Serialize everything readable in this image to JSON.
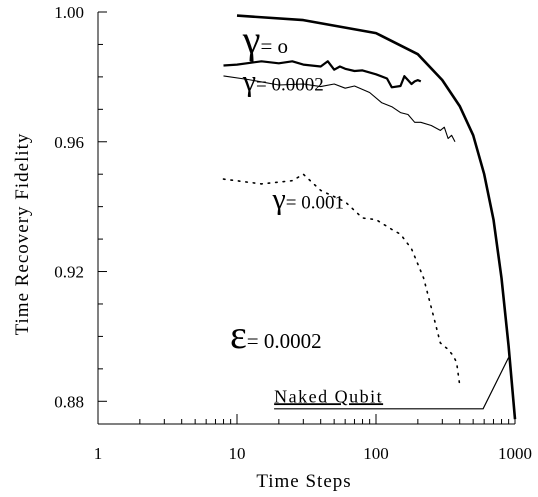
{
  "chart_data": {
    "type": "line",
    "xlabel": "Time Steps",
    "ylabel": "Time Recovery Fidelity",
    "xscale": "log",
    "xlim": [
      1,
      1000
    ],
    "ylim": [
      0.873,
      1.0
    ],
    "xticks": [
      {
        "value": 1,
        "label": "1"
      },
      {
        "value": 10,
        "label": "10"
      },
      {
        "value": 100,
        "label": "100"
      },
      {
        "value": 1000,
        "label": "1000"
      }
    ],
    "yticks": [
      {
        "value": 0.88,
        "label": "0.88"
      },
      {
        "value": 0.92,
        "label": "0.92"
      },
      {
        "value": 0.96,
        "label": "0.96"
      },
      {
        "value": 1.0,
        "label": "1.00"
      }
    ],
    "grid": false,
    "legend": "none",
    "series": [
      {
        "style": "thick-solid",
        "points": [
          [
            10,
            0.9989
          ],
          [
            30,
            0.9975
          ],
          [
            100,
            0.9935
          ],
          [
            200,
            0.987
          ],
          [
            300,
            0.979
          ],
          [
            400,
            0.971
          ],
          [
            500,
            0.962
          ],
          [
            600,
            0.95
          ],
          [
            700,
            0.936
          ],
          [
            800,
            0.918
          ],
          [
            900,
            0.897
          ],
          [
            1000,
            0.8745
          ]
        ]
      },
      {
        "style": "medium-solid",
        "points": [
          [
            8,
            0.9835
          ],
          [
            10,
            0.9838
          ],
          [
            15,
            0.9848
          ],
          [
            20,
            0.9842
          ],
          [
            25,
            0.9848
          ],
          [
            30,
            0.9838
          ],
          [
            40,
            0.9832
          ],
          [
            45,
            0.9848
          ],
          [
            50,
            0.9822
          ],
          [
            55,
            0.9832
          ],
          [
            60,
            0.9825
          ],
          [
            70,
            0.9818
          ],
          [
            80,
            0.982
          ],
          [
            100,
            0.9808
          ],
          [
            120,
            0.9795
          ],
          [
            130,
            0.9768
          ],
          [
            150,
            0.9772
          ],
          [
            160,
            0.9802
          ],
          [
            170,
            0.979
          ],
          [
            180,
            0.9778
          ],
          [
            190,
            0.9786
          ],
          [
            200,
            0.979
          ],
          [
            210,
            0.9786
          ]
        ]
      },
      {
        "style": "thin-solid",
        "points": [
          [
            8,
            0.9803
          ],
          [
            12,
            0.9792
          ],
          [
            20,
            0.9775
          ],
          [
            30,
            0.9778
          ],
          [
            40,
            0.977
          ],
          [
            50,
            0.9778
          ],
          [
            60,
            0.9765
          ],
          [
            70,
            0.9772
          ],
          [
            90,
            0.9752
          ],
          [
            110,
            0.972
          ],
          [
            130,
            0.9708
          ],
          [
            150,
            0.969
          ],
          [
            170,
            0.9684
          ],
          [
            190,
            0.966
          ],
          [
            210,
            0.966
          ],
          [
            250,
            0.965
          ],
          [
            290,
            0.9635
          ],
          [
            310,
            0.9645
          ],
          [
            330,
            0.961
          ],
          [
            350,
            0.962
          ],
          [
            370,
            0.96
          ]
        ]
      },
      {
        "style": "dotted",
        "points": [
          [
            8,
            0.9485
          ],
          [
            15,
            0.947
          ],
          [
            25,
            0.948
          ],
          [
            30,
            0.95
          ],
          [
            40,
            0.945
          ],
          [
            60,
            0.9415
          ],
          [
            80,
            0.9365
          ],
          [
            100,
            0.936
          ],
          [
            130,
            0.933
          ],
          [
            150,
            0.9315
          ],
          [
            180,
            0.927
          ],
          [
            220,
            0.918
          ],
          [
            260,
            0.906
          ],
          [
            290,
            0.898
          ],
          [
            330,
            0.896
          ],
          [
            360,
            0.894
          ],
          [
            380,
            0.892
          ],
          [
            400,
            0.885
          ]
        ]
      }
    ],
    "annotations": [
      {
        "symbol": "γ",
        "text": "= o",
        "x": 11,
        "y": 0.9873,
        "size": "large"
      },
      {
        "symbol": "γ",
        "text": "= 0.0002",
        "x": 11,
        "y": 0.9758,
        "size": "medium"
      },
      {
        "symbol": "γ",
        "text": "= 0.001",
        "x": 18,
        "y": 0.9395,
        "size": "medium"
      },
      {
        "symbol": "ε",
        "text": "= 0.0002",
        "x": 8.9,
        "y": 0.8965,
        "size": "large"
      },
      {
        "symbol": "",
        "text": "Naked Qubit",
        "x": 18.5,
        "y": 0.8797,
        "size": "small",
        "underline": true
      }
    ],
    "pointer": {
      "from": [
        18.5,
        0.8777
      ],
      "corner": [
        590,
        0.8777
      ],
      "to": [
        900,
        0.8935
      ]
    }
  }
}
